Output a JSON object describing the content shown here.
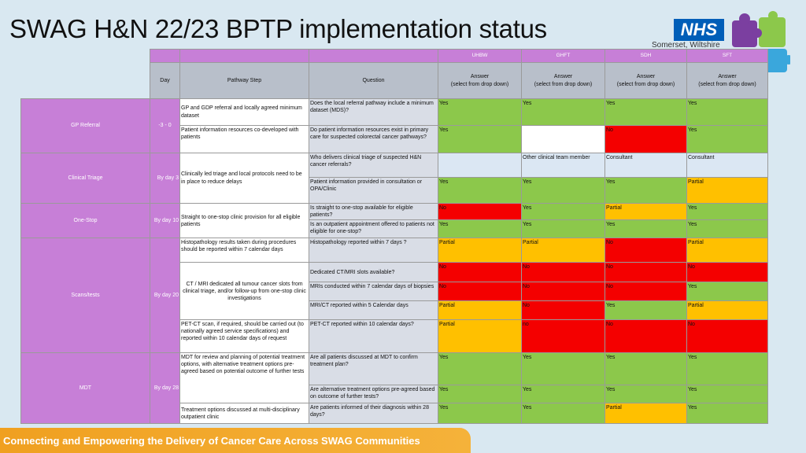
{
  "title": "SWAG H&N 22/23 BPTP implementation status",
  "logo": {
    "nhs_text": "NHS",
    "org_name": "Somerset, Wiltshire",
    "puzzle_icon": "puzzle-icon"
  },
  "footer": {
    "text": "Connecting and Empowering the Delivery of Cancer Care Across SWAG Communities"
  },
  "colors": {
    "green": "#8cc84b",
    "red": "#f40000",
    "amber": "#ffc000",
    "purple": "#c77fd7",
    "header_grey": "#b8bfca"
  },
  "table": {
    "orgs": [
      "UHBW",
      "GHFT",
      "SDH",
      "SFT"
    ],
    "headers": {
      "day": "Day",
      "pathway_step": "Pathway Step",
      "question": "Question",
      "answer": "Answer\n(select from drop down)"
    },
    "sections": [
      {
        "name": "GP Referral",
        "day": "-3 - 0"
      },
      {
        "name": "Clinical Triage",
        "day": "By day 3"
      },
      {
        "name": "One-Stop",
        "day": "By day 10"
      },
      {
        "name": "Scans/tests",
        "day": "By day 20"
      },
      {
        "name": "MDT",
        "day": "By day 28"
      }
    ],
    "steps": [
      "GP and GDP referral and  locally agreed minimum dataset",
      "Patient  information resources  co-developed with patients",
      "Clinically led  triage and local protocols  need to be in place to reduce delays",
      "Straight  to one-stop  clinic provision  for all eligible patients",
      "Histopathology  results  taken during procedures should  be reported  within  7 calendar  days",
      "CT / MRI dedicated  all  tumour cancer slots from clinical triage,  and/or  follow-up from one-stop  clinic investigations",
      "PET-CT scan, if required,  should  be carried out (to nationally  agreed service specifications)  and reported within  10 calendar  days of request",
      "MDT for review and planning  of potential treatment options,  with alternative  treatment options  pre-agreed based  on potential outcome of further tests",
      "Treatment options  discussed  at multi-disciplinary outpatient  clinic"
    ],
    "rows": [
      {
        "question": "Does the local referral pathway include a minimum dataset (MDS)?",
        "answers": [
          "Yes",
          "Yes",
          "Yes",
          "Yes"
        ],
        "status": [
          "g",
          "g",
          "g",
          "g"
        ]
      },
      {
        "question": "Do patient information resources exist in primary care for suspected colorectal cancer pathways?",
        "answers": [
          "Yes",
          "",
          "No",
          "Yes"
        ],
        "status": [
          "g",
          "w",
          "r",
          "g"
        ]
      },
      {
        "question": "Who delivers clinical triage of suspected H&N cancer referrals?",
        "answers": [
          "",
          "Other clinical team member",
          "Consultant",
          "Consultant"
        ],
        "status": [
          "lb",
          "lb",
          "lb",
          "lb"
        ]
      },
      {
        "question": "Patient information provided in consultation or OPA/Clinic",
        "answers": [
          "Yes",
          "Yes",
          "Yes",
          "Partial"
        ],
        "status": [
          "g",
          "g",
          "g",
          "o"
        ]
      },
      {
        "question": "Is straight to one-stop available for eligible patients?",
        "answers": [
          "No",
          "Yes",
          "Partial",
          "Yes"
        ],
        "status": [
          "r",
          "g",
          "o",
          "g"
        ]
      },
      {
        "question": "Is an outpatient appointment offered to patients not eligible for one-stop?",
        "answers": [
          "Yes",
          "Yes",
          "Yes",
          "Yes"
        ],
        "status": [
          "g",
          "g",
          "g",
          "g"
        ]
      },
      {
        "question": "Histopathology reported within 7 days ?",
        "answers": [
          "Partial",
          "Partial",
          "No",
          "Partial"
        ],
        "status": [
          "o",
          "o",
          "r",
          "o"
        ]
      },
      {
        "question": "Dedicated CT/MRI slots available?",
        "answers": [
          "No",
          "No",
          "No",
          "No"
        ],
        "status": [
          "r",
          "r",
          "r",
          "r"
        ]
      },
      {
        "question": "MRIs conducted within 7 calendar days of biopsies",
        "answers": [
          "No",
          "No",
          "No",
          "Yes"
        ],
        "status": [
          "r",
          "r",
          "r",
          "g"
        ]
      },
      {
        "question": "MRI/CT reported within 5 Calendar days",
        "answers": [
          "Partial",
          "No",
          "Yes",
          "Partial"
        ],
        "status": [
          "o",
          "r",
          "g",
          "o"
        ]
      },
      {
        "question": "PET-CT reported within 10 calendar days?",
        "answers": [
          "Partial",
          "no",
          "No",
          "No"
        ],
        "status": [
          "o",
          "r",
          "r",
          "r"
        ]
      },
      {
        "question": "Are all patients discussed at MDT to confirm treatment plan?",
        "answers": [
          "Yes",
          "Yes",
          "Yes",
          "Yes"
        ],
        "status": [
          "g",
          "g",
          "g",
          "g"
        ]
      },
      {
        "question": "Are alternative treatment options pre-agreed based on outcome of further tests?",
        "answers": [
          "Yes",
          "Yes",
          "Yes",
          "Yes"
        ],
        "status": [
          "g",
          "g",
          "g",
          "g"
        ]
      },
      {
        "question": "Are patients informed of their diagnosis within 28 days?",
        "answers": [
          "Yes",
          "Yes",
          "Partial",
          "Yes"
        ],
        "status": [
          "g",
          "g",
          "o",
          "g"
        ]
      }
    ]
  }
}
